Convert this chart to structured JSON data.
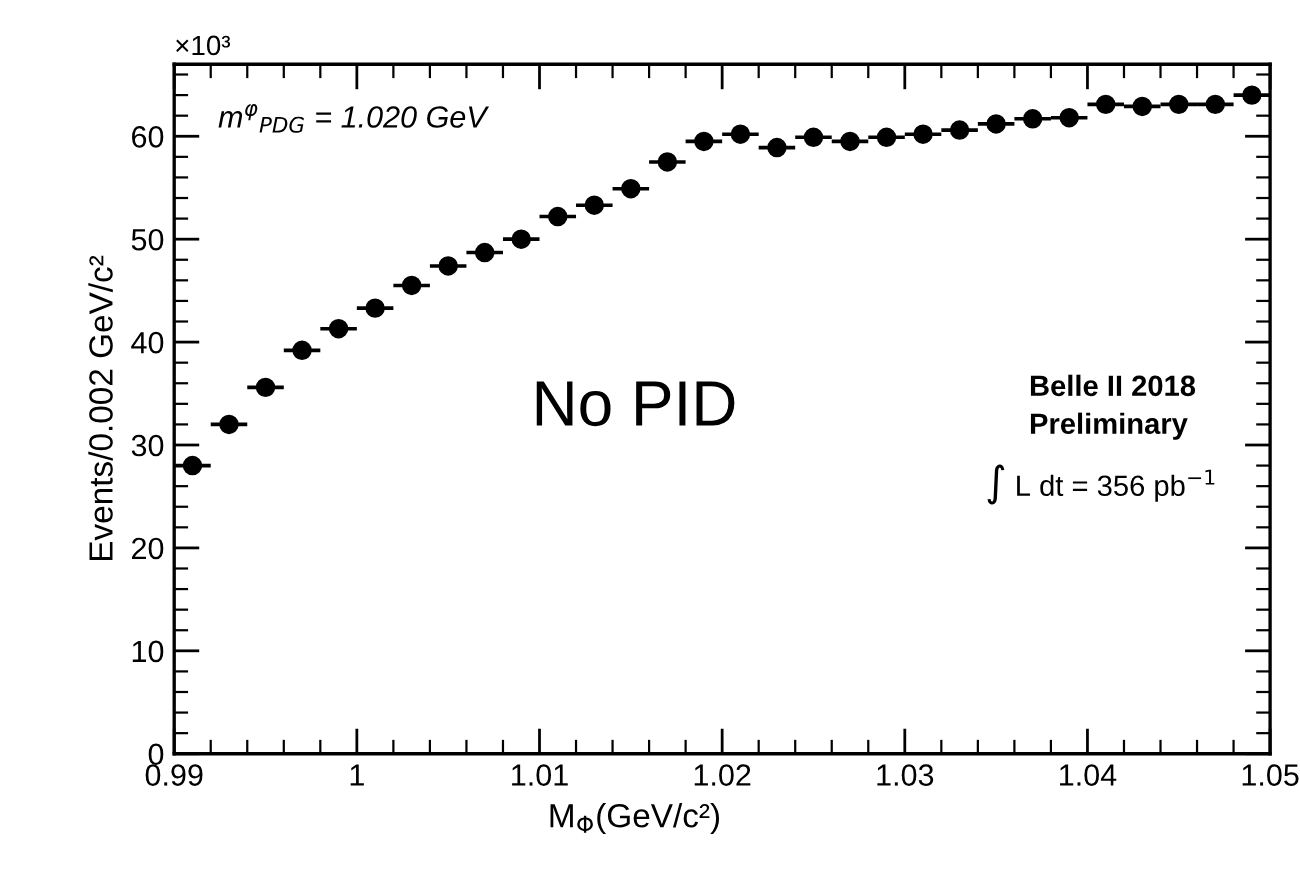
{
  "chart_data": {
    "type": "scatter",
    "xlabel": "M$_{Φ}$(GeV/c²)",
    "ylabel": "Events/0.002 GeV/c²",
    "x": [
      0.991,
      0.993,
      0.995,
      0.997,
      0.999,
      1.001,
      1.003,
      1.005,
      1.007,
      1.009,
      1.011,
      1.013,
      1.015,
      1.017,
      1.019,
      1.021,
      1.023,
      1.025,
      1.027,
      1.029,
      1.031,
      1.033,
      1.035,
      1.037,
      1.039,
      1.041,
      1.043,
      1.045,
      1.047,
      1.049
    ],
    "values": [
      28.0,
      32.0,
      35.6,
      39.2,
      41.3,
      43.3,
      45.5,
      47.4,
      48.7,
      50.0,
      52.2,
      53.3,
      54.9,
      57.5,
      59.5,
      60.2,
      58.9,
      59.9,
      59.5,
      59.9,
      60.2,
      60.6,
      61.2,
      61.7,
      61.8,
      63.1,
      62.9,
      63.1,
      63.1,
      64.0
    ],
    "xerrors": [
      0.001,
      0.001,
      0.001,
      0.001,
      0.001,
      0.001,
      0.001,
      0.001,
      0.001,
      0.001,
      0.001,
      0.001,
      0.001,
      0.001,
      0.001,
      0.001,
      0.001,
      0.001,
      0.001,
      0.001,
      0.001,
      0.001,
      0.001,
      0.001,
      0.001,
      0.001,
      0.001,
      0.001,
      0.001,
      0.001
    ],
    "color": "#000000",
    "marker": "circle",
    "xlim": [
      0.99,
      1.05
    ],
    "xticks": [
      0.99,
      1,
      1.01,
      1.02,
      1.03,
      1.04,
      1.05
    ],
    "ylim": [
      0,
      67
    ],
    "yticks": [
      0,
      10,
      20,
      30,
      40,
      50,
      60
    ],
    "grid": false,
    "legend": false,
    "annotations": [
      "×10³",
      "m$^{φ}$$_{PDG}$ = 1.020 GeV",
      "No PID",
      "Belle II 2018",
      "Preliminary",
      "∫ L dt = 356 pb$^{−1}$"
    ]
  }
}
